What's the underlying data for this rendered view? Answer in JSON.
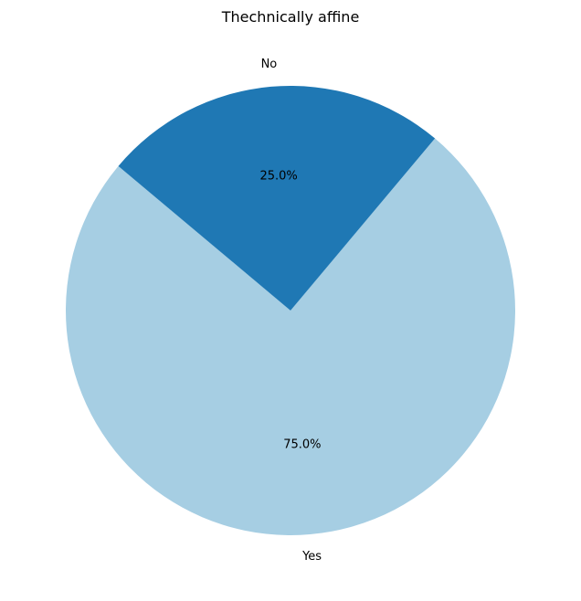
{
  "chart_data": {
    "type": "pie",
    "title": "Thechnically affine",
    "categories": [
      "Yes",
      "No"
    ],
    "values": [
      75.0,
      25.0
    ],
    "percent_labels": [
      "75.0%",
      "25.0%"
    ],
    "colors": [
      "#a6cee3",
      "#1f78b4"
    ],
    "start_angle_deg": 140,
    "direction": "counterclockwise",
    "legend": "none"
  }
}
